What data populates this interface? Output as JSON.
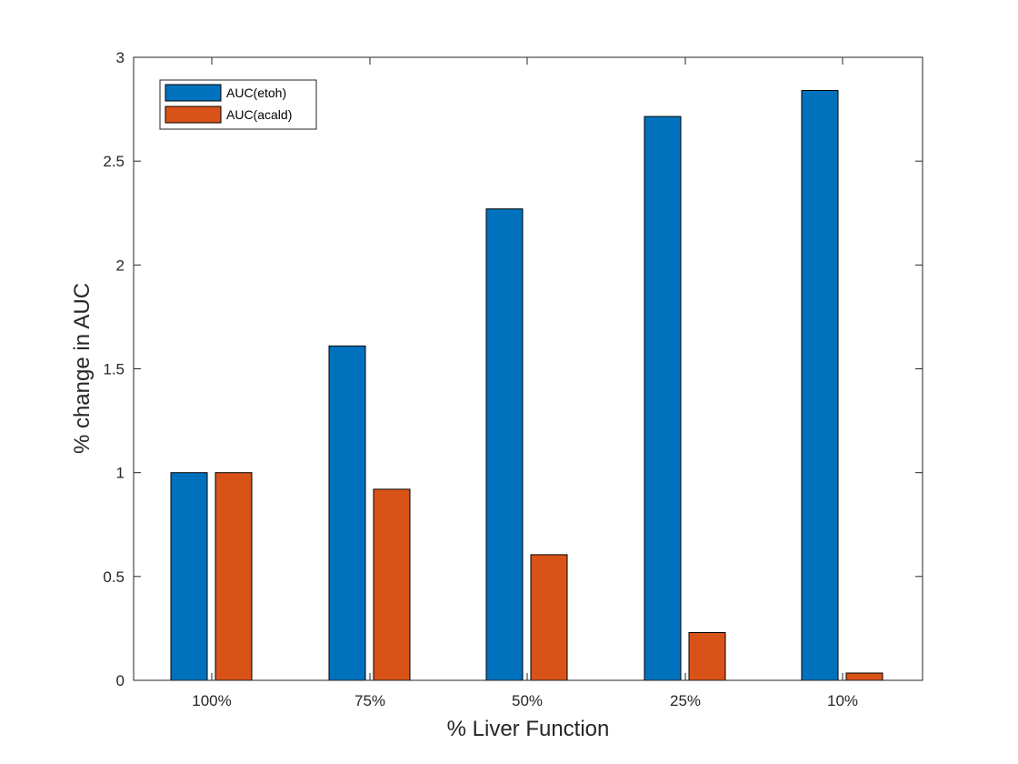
{
  "chart_data": {
    "type": "bar",
    "title": "",
    "xlabel": "% Liver Function",
    "ylabel": "% change in AUC",
    "categories": [
      "100%",
      "75%",
      "50%",
      "25%",
      "10%"
    ],
    "series": [
      {
        "name": "AUC(etoh)",
        "color": "#0072BD",
        "values": [
          1.0,
          1.61,
          2.27,
          2.715,
          2.84
        ]
      },
      {
        "name": "AUC(acald)",
        "color": "#D95319",
        "values": [
          1.0,
          0.92,
          0.605,
          0.23,
          0.035
        ]
      }
    ],
    "ylim": [
      0,
      3
    ],
    "yticks": [
      "0",
      "0.5",
      "1",
      "1.5",
      "2",
      "2.5",
      "3"
    ],
    "grid": false,
    "legend": "top-left"
  }
}
